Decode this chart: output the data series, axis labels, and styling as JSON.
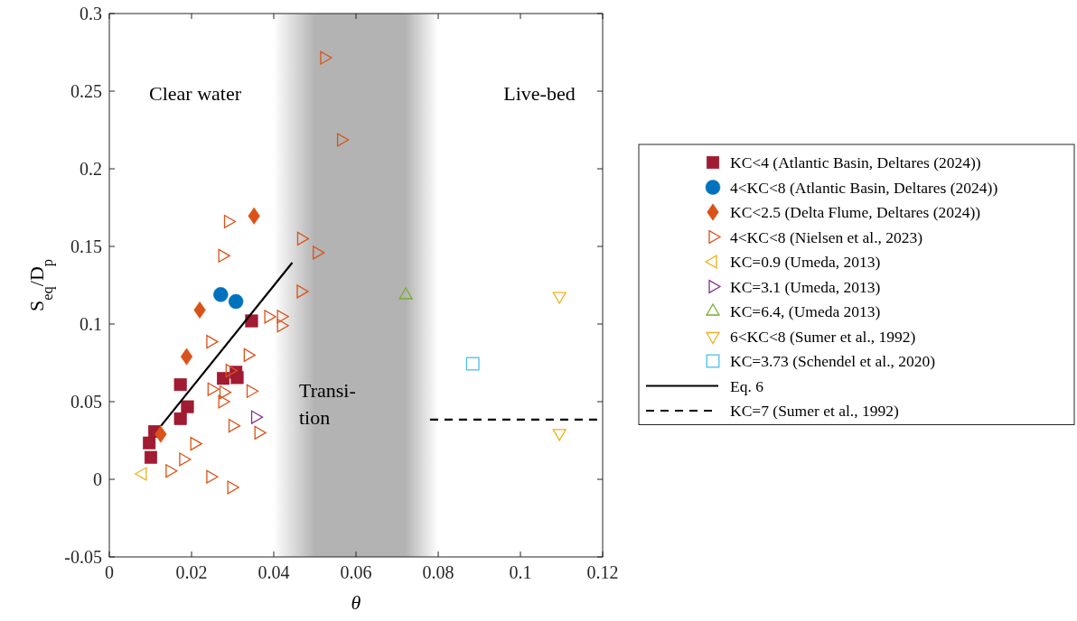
{
  "chart_data": {
    "type": "scatter",
    "xlabel": "θ",
    "ylabel": "S$_{eq}$/D$_{p}$",
    "xlim": [
      0,
      0.12
    ],
    "xticks": [
      0,
      0.02,
      0.04,
      0.06,
      0.08,
      0.1,
      0.12
    ],
    "ylim": [
      -0.05,
      0.3
    ],
    "yticks": [
      -0.05,
      0,
      0.05,
      0.1,
      0.15,
      0.2,
      0.25,
      0.3
    ],
    "grid": false,
    "legend": "right",
    "bands": [
      {
        "axis": "x",
        "from": 0.04,
        "to": 0.08,
        "label": "Transi-\ntion",
        "color": "#b3b3b3"
      }
    ],
    "annotations": [
      "Clear water",
      "Live-bed"
    ],
    "series": [
      {
        "name": "KC<4 (Atlantic Basin, Deltares (2024))",
        "color": "#a11b32",
        "marker": "square",
        "x": [
          0.0346,
          0.0308,
          0.0311,
          0.0277,
          0.0173,
          0.019,
          0.0173,
          0.011,
          0.0097,
          0.0101
        ],
        "values": [
          0.102,
          0.069,
          0.0655,
          0.065,
          0.061,
          0.0467,
          0.039,
          0.0308,
          0.0234,
          0.0141
        ]
      },
      {
        "name": "4<KC<8 (Atlantic Basin, Deltares (2024))",
        "color": "#0072bd",
        "marker": "circle",
        "x": [
          0.0271,
          0.0308
        ],
        "values": [
          0.119,
          0.1145
        ]
      },
      {
        "name": "KC<2.5 (Delta Flume, Deltares (2024))",
        "color": "#d95319",
        "marker": "diamond",
        "x": [
          0.0352,
          0.022,
          0.0188,
          0.0125
        ],
        "values": [
          0.1696,
          0.109,
          0.079,
          0.029
        ]
      },
      {
        "name": "4<KC<8 (Nielsen et al., 2023)",
        "color": "#d95319",
        "marker": "triangle-right-open",
        "x": [
          0.0523,
          0.0564,
          0.0289,
          0.0275,
          0.0467,
          0.0505,
          0.0466,
          0.0387,
          0.0418,
          0.0418,
          0.0246,
          0.0337,
          0.0293,
          0.0249,
          0.0278,
          0.0275,
          0.0344,
          0.03,
          0.0363,
          0.0207,
          0.018,
          0.0147,
          0.0246,
          0.0297
        ],
        "values": [
          0.2715,
          0.2186,
          0.166,
          0.144,
          0.155,
          0.146,
          0.121,
          0.1047,
          0.1048,
          0.099,
          0.0886,
          0.08,
          0.07,
          0.058,
          0.056,
          0.05,
          0.0568,
          0.0345,
          0.03,
          0.0229,
          0.0128,
          0.0054,
          0.0016,
          -0.0052
        ]
      },
      {
        "name": "KC=0.9 (Umeda, 2013)",
        "color": "#edb120",
        "marker": "triangle-left-open",
        "x": [
          0.0081
        ],
        "values": [
          0.0035
        ]
      },
      {
        "name": "KC=3.1 (Umeda, 2013)",
        "color": "#7e2f8e",
        "marker": "triangle-right-open",
        "x": [
          0.0355
        ],
        "values": [
          0.04
        ]
      },
      {
        "name": "KC=6.4, (Umeda 2013)",
        "color": "#77ac30",
        "marker": "triangle-open",
        "x": [
          0.0721
        ],
        "values": [
          0.1186
        ]
      },
      {
        "name": "6<KC<8 (Sumer et al., 1992)",
        "color": "#edb120",
        "marker": "triangle-down-open",
        "x": [
          0.1095,
          0.1095
        ],
        "values": [
          0.118,
          0.0297
        ]
      },
      {
        "name": "KC=3.73 (Schendel et al., 2020)",
        "color": "#4dbeee",
        "marker": "square-open",
        "x": [
          0.0884
        ],
        "values": [
          0.0744
        ]
      },
      {
        "name": "Eq. 6",
        "type": "line",
        "color": "#000000",
        "line_style": "solid",
        "x": [
          0.0126,
          0.0445
        ],
        "values": [
          0.0345,
          0.1395
        ]
      },
      {
        "name": "KC=7 (Sumer et al., 1992)",
        "type": "line",
        "color": "#000000",
        "line_style": "dashed",
        "x": [
          0.078,
          0.12
        ],
        "values": [
          0.0385,
          0.0385
        ]
      }
    ]
  }
}
